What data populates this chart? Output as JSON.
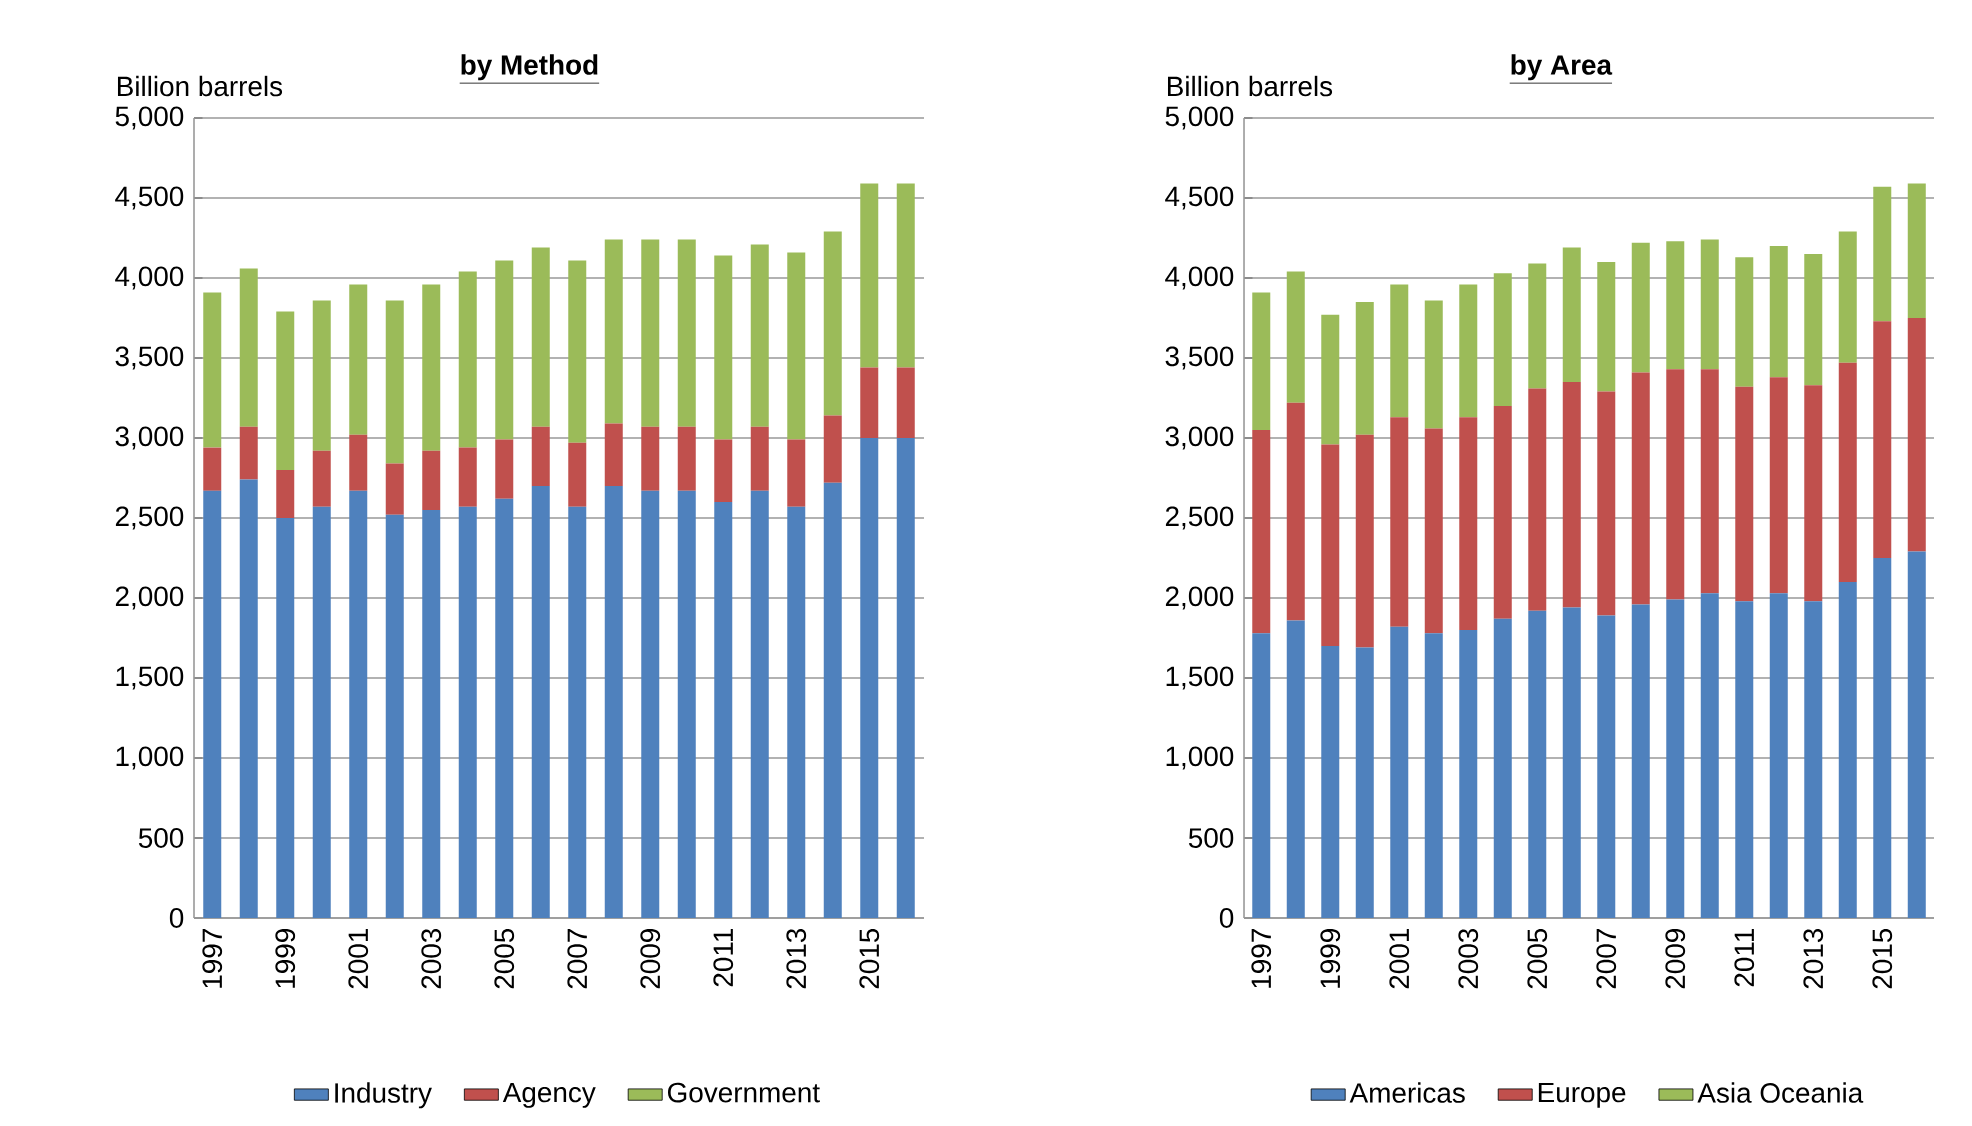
{
  "chart_data": [
    {
      "type": "bar",
      "title": "by Method",
      "ylabel": "Billion barrels",
      "stacked": true,
      "grid": "y",
      "legend": "bottom",
      "categories": [
        "1997",
        null,
        "1999",
        null,
        "2001",
        null,
        "2003",
        null,
        "2005",
        null,
        "2007",
        null,
        "2009",
        null,
        "2011",
        null,
        "2013",
        null,
        "2015",
        null
      ],
      "ylim": [
        0,
        5000
      ],
      "yticks": [
        {
          "value": 0,
          "label": "0"
        },
        {
          "value": 500,
          "label": "500"
        },
        {
          "value": 1000,
          "label": "1,000"
        },
        {
          "value": 1500,
          "label": "1,500"
        },
        {
          "value": 2000,
          "label": "2,000"
        },
        {
          "value": 2500,
          "label": "2,500"
        },
        {
          "value": 3000,
          "label": "3,000"
        },
        {
          "value": 3500,
          "label": "3,500"
        },
        {
          "value": 4000,
          "label": "4,000"
        },
        {
          "value": 4500,
          "label": "4,500"
        },
        {
          "value": 5000,
          "label": "5,000"
        }
      ],
      "series": [
        {
          "name": "Industry",
          "color": "#4f81bd",
          "values": [
            2670,
            2740,
            2500,
            2570,
            2670,
            2520,
            2550,
            2570,
            2620,
            2700,
            2570,
            2700,
            2670,
            2670,
            2600,
            2670,
            2570,
            2720,
            3000,
            3000
          ]
        },
        {
          "name": "Agency",
          "color": "#c0504d",
          "values": [
            270,
            330,
            300,
            350,
            350,
            320,
            370,
            370,
            370,
            370,
            400,
            390,
            400,
            400,
            390,
            400,
            420,
            420,
            440,
            440
          ]
        },
        {
          "name": "Government",
          "color": "#9bbb59",
          "values": [
            970,
            990,
            990,
            940,
            940,
            1020,
            1040,
            1100,
            1120,
            1120,
            1140,
            1150,
            1170,
            1170,
            1150,
            1140,
            1170,
            1150,
            1150,
            1150
          ]
        }
      ]
    },
    {
      "type": "bar",
      "title": "by Area",
      "ylabel": "Billion barrels",
      "stacked": true,
      "grid": "y",
      "legend": "bottom",
      "categories": [
        "1997",
        null,
        "1999",
        null,
        "2001",
        null,
        "2003",
        null,
        "2005",
        null,
        "2007",
        null,
        "2009",
        null,
        "2011",
        null,
        "2013",
        null,
        "2015",
        null
      ],
      "ylim": [
        0,
        5000
      ],
      "yticks": [
        {
          "value": 0,
          "label": "0"
        },
        {
          "value": 500,
          "label": "500"
        },
        {
          "value": 1000,
          "label": "1,000"
        },
        {
          "value": 1500,
          "label": "1,500"
        },
        {
          "value": 2000,
          "label": "2,000"
        },
        {
          "value": 2500,
          "label": "2,500"
        },
        {
          "value": 3000,
          "label": "3,000"
        },
        {
          "value": 3500,
          "label": "3,500"
        },
        {
          "value": 4000,
          "label": "4,000"
        },
        {
          "value": 4500,
          "label": "4,500"
        },
        {
          "value": 5000,
          "label": "5,000"
        }
      ],
      "series": [
        {
          "name": "Americas",
          "color": "#4f81bd",
          "values": [
            1780,
            1860,
            1700,
            1690,
            1820,
            1780,
            1800,
            1870,
            1920,
            1940,
            1890,
            1960,
            1990,
            2030,
            1980,
            2030,
            1980,
            2100,
            2250,
            2290
          ]
        },
        {
          "name": "Europe",
          "color": "#c0504d",
          "values": [
            1270,
            1360,
            1260,
            1330,
            1310,
            1280,
            1330,
            1330,
            1390,
            1410,
            1400,
            1450,
            1440,
            1400,
            1340,
            1350,
            1350,
            1370,
            1480,
            1460
          ]
        },
        {
          "name": "Asia Oceania",
          "color": "#9bbb59",
          "values": [
            860,
            820,
            810,
            830,
            830,
            800,
            830,
            830,
            780,
            840,
            810,
            810,
            800,
            810,
            810,
            820,
            820,
            820,
            840,
            840
          ]
        }
      ]
    }
  ]
}
